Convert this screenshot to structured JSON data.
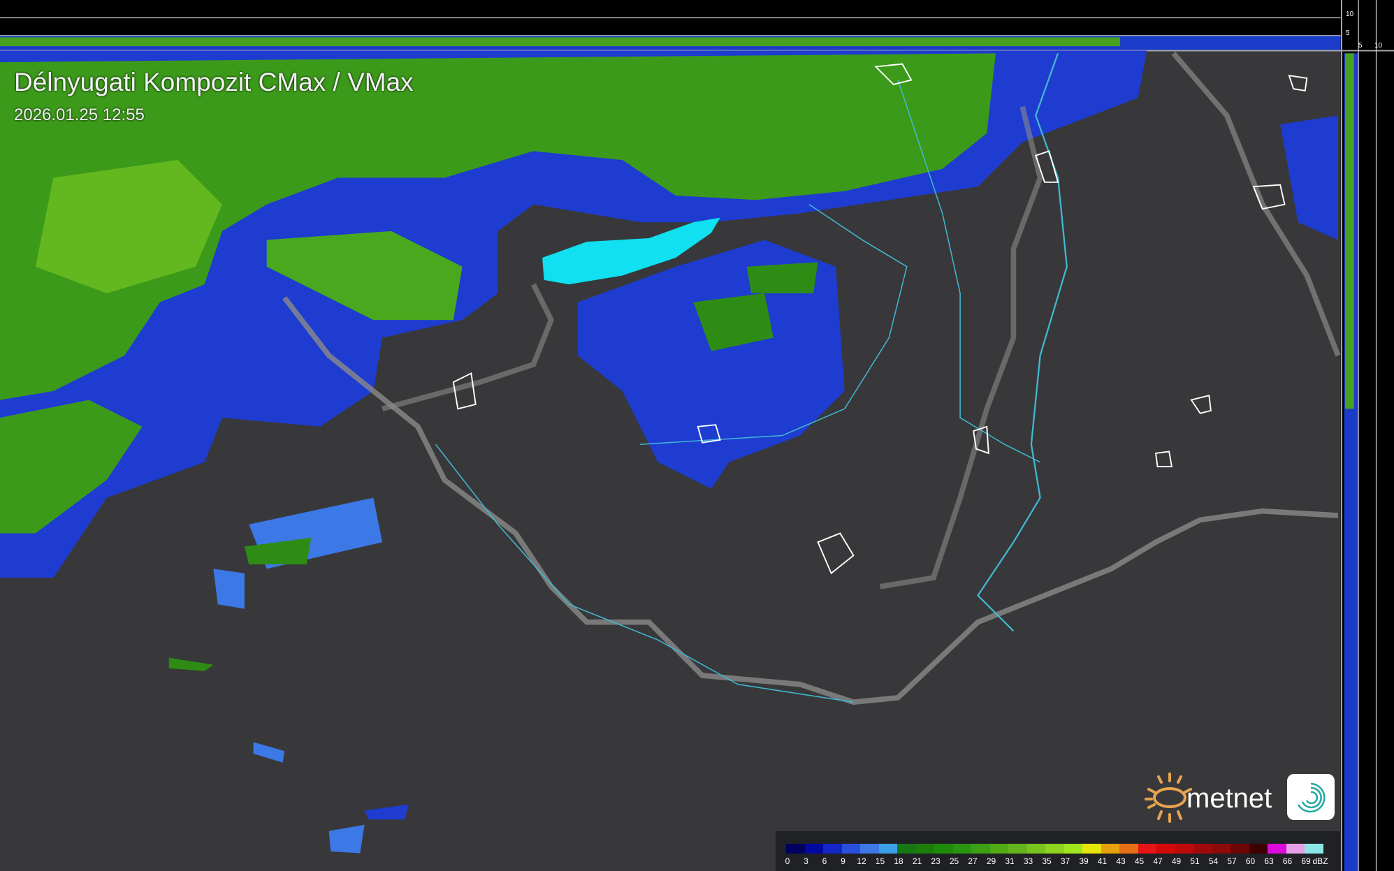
{
  "header": {
    "title": "Délnyugati Kompozit CMax / VMax",
    "timestamp": "2026.01.25 12:55"
  },
  "side_profile": {
    "top_ticks": [
      "10",
      "5"
    ],
    "right_ticks": [
      "5",
      "10"
    ]
  },
  "legend": {
    "unit": "dBZ",
    "labels": [
      "0",
      "3",
      "6",
      "9",
      "12",
      "15",
      "18",
      "21",
      "23",
      "25",
      "27",
      "29",
      "31",
      "33",
      "35",
      "37",
      "39",
      "41",
      "43",
      "45",
      "47",
      "49",
      "51",
      "54",
      "57",
      "60",
      "63",
      "66",
      "69"
    ],
    "colors": [
      "#00005e",
      "#000aa0",
      "#1426c8",
      "#2850dc",
      "#3c78e6",
      "#3ca0e6",
      "#147814",
      "#1e7d0a",
      "#1e8c0a",
      "#28960f",
      "#3ca014",
      "#50aa14",
      "#64b41e",
      "#78c31e",
      "#8cd21e",
      "#a0e61e",
      "#e6e60a",
      "#e6a00a",
      "#e66e14",
      "#e61414",
      "#d20a0a",
      "#be0a0a",
      "#a00a0a",
      "#8c0a0a",
      "#6e0505",
      "#3c0000",
      "#dc0adc",
      "#e6a0e6",
      "#8ce6e6"
    ]
  },
  "brand": {
    "logo_text": "metnet",
    "accent_color": "#e8a450",
    "logo_mark": "swirl-icon"
  },
  "colors": {
    "background_terrain": "#3a3a3d",
    "border": "#8a8a8a",
    "river": "#40b8d0",
    "lake": "#10e0f0"
  }
}
